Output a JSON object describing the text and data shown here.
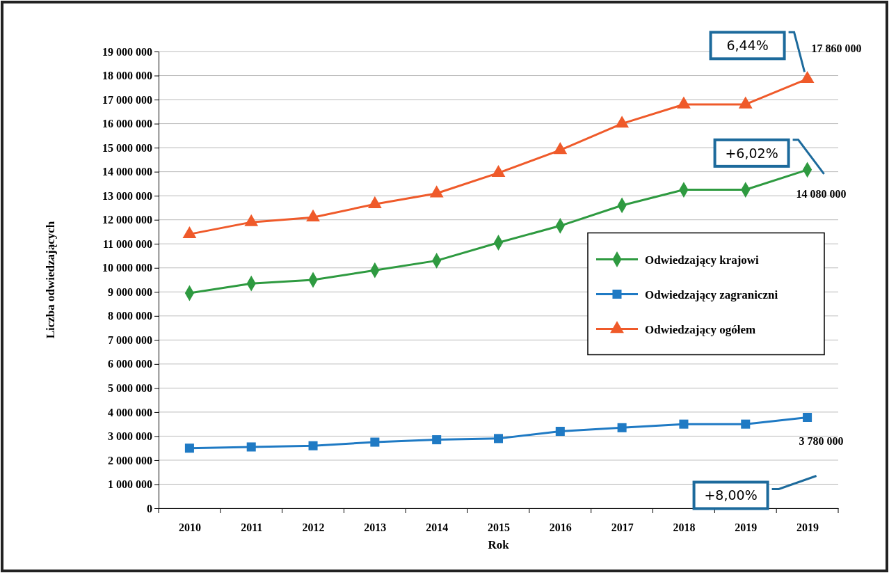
{
  "chart_data": {
    "type": "line",
    "xlabel": "Rok",
    "ylabel": "Liczba odwiedzających",
    "categories": [
      "2010",
      "2011",
      "2012",
      "2013",
      "2014",
      "2015",
      "2016",
      "2017",
      "2018",
      "2019",
      "2019"
    ],
    "series": [
      {
        "name": "Odwiedzający krajowi",
        "color": "#2e9a40",
        "marker": "diamond",
        "values": [
          8950000,
          9350000,
          9500000,
          9900000,
          10300000,
          11050000,
          11750000,
          12600000,
          13250000,
          13250000,
          14080000
        ],
        "value_labels": [
          null,
          null,
          null,
          null,
          null,
          null,
          null,
          null,
          null,
          null,
          "14 080 000"
        ]
      },
      {
        "name": "Odwiedzający zagraniczni",
        "color": "#1f7ac4",
        "marker": "square",
        "values": [
          2500000,
          2550000,
          2600000,
          2750000,
          2850000,
          2900000,
          3200000,
          3350000,
          3500000,
          3500000,
          3780000
        ],
        "value_labels": [
          null,
          null,
          null,
          null,
          null,
          null,
          null,
          null,
          null,
          null,
          "3 780 000"
        ]
      },
      {
        "name": "Odwiedzający ogółem",
        "color": "#ef5a2a",
        "marker": "triangle",
        "values": [
          11400000,
          11900000,
          12100000,
          12650000,
          13100000,
          13950000,
          14900000,
          16000000,
          16800000,
          16800000,
          17860000
        ],
        "value_labels": [
          null,
          null,
          null,
          null,
          null,
          null,
          null,
          null,
          null,
          null,
          "17 860 000"
        ]
      }
    ],
    "annotations": [
      "+6,02%",
      "+8,00%",
      "6,44%"
    ],
    "ylim": [
      0,
      19000000
    ],
    "yticks": [
      {
        "value": 0,
        "label": "0"
      },
      {
        "value": 1000000,
        "label": "1 000 000"
      },
      {
        "value": 2000000,
        "label": "2 000 000"
      },
      {
        "value": 3000000,
        "label": "3 000 000"
      },
      {
        "value": 4000000,
        "label": "4 000 000"
      },
      {
        "value": 5000000,
        "label": "5 000 000"
      },
      {
        "value": 6000000,
        "label": "6 000 000"
      },
      {
        "value": 7000000,
        "label": "7 000 000"
      },
      {
        "value": 8000000,
        "label": "8 000 000"
      },
      {
        "value": 9000000,
        "label": "9 000 000"
      },
      {
        "value": 10000000,
        "label": "10 000 000"
      },
      {
        "value": 11000000,
        "label": "11 000 000"
      },
      {
        "value": 12000000,
        "label": "12 000 000"
      },
      {
        "value": 13000000,
        "label": "13 000 000"
      },
      {
        "value": 14000000,
        "label": "14 000 000"
      },
      {
        "value": 15000000,
        "label": "15 000 000"
      },
      {
        "value": 16000000,
        "label": "16 000 000"
      },
      {
        "value": 17000000,
        "label": "17 000 000"
      },
      {
        "value": 18000000,
        "label": "18 000 000"
      },
      {
        "value": 19000000,
        "label": "19 000 000"
      }
    ],
    "grid": "y",
    "legend": "right",
    "line_style": "solid"
  }
}
